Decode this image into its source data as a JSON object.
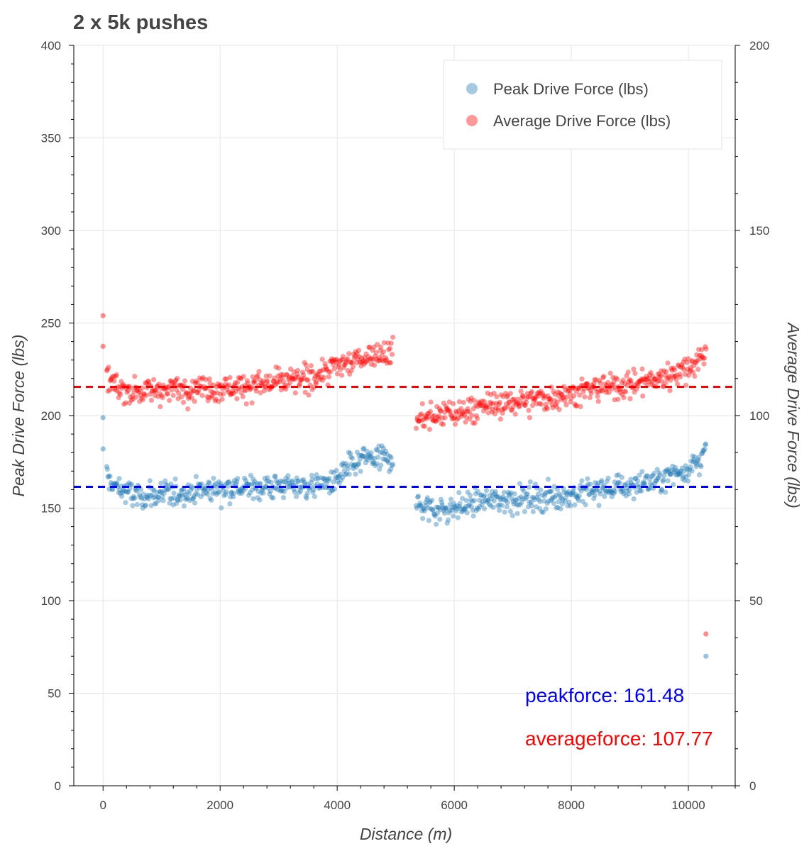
{
  "chart_data": {
    "type": "scatter",
    "title": "2 x 5k pushes",
    "xlabel": "Distance (m)",
    "ylabel": "Peak Drive Force (lbs)",
    "y2label": "Average Drive Force (lbs)",
    "xlim": [
      -500,
      10800
    ],
    "ylim": [
      0,
      400
    ],
    "y2lim": [
      0,
      200
    ],
    "x_ticks": [
      0,
      2000,
      4000,
      6000,
      8000,
      10000
    ],
    "y_ticks": [
      0,
      50,
      100,
      150,
      200,
      250,
      300,
      350,
      400
    ],
    "y2_ticks": [
      0,
      50,
      100,
      150,
      200
    ],
    "grid": true,
    "legend_position": "top-right",
    "series": [
      {
        "name": "Peak Drive Force (lbs)",
        "axis": "left",
        "color": "#1f77b4",
        "points_description": "roughly 800 strokes; segment 1 from 0 to 4950 m trending 160-178, segment 2 from 5350 to 10300 m trending 150-180; outlier 199 at x=0; final point 70 at 10300",
        "anchors": [
          [
            0,
            198.9
          ],
          [
            0,
            182
          ],
          [
            50,
            172
          ],
          [
            100,
            164
          ],
          [
            300,
            160
          ],
          [
            600,
            156
          ],
          [
            1000,
            157
          ],
          [
            1500,
            159
          ],
          [
            2000,
            161
          ],
          [
            2500,
            161
          ],
          [
            3000,
            162
          ],
          [
            3500,
            162
          ],
          [
            3950,
            164
          ],
          [
            4200,
            172
          ],
          [
            4500,
            177
          ],
          [
            4950,
            177
          ],
          [
            5350,
            152
          ],
          [
            5700,
            149
          ],
          [
            6000,
            150
          ],
          [
            6500,
            154
          ],
          [
            7000,
            155
          ],
          [
            7500,
            156
          ],
          [
            8000,
            157
          ],
          [
            8500,
            160
          ],
          [
            9000,
            162
          ],
          [
            9500,
            165
          ],
          [
            10000,
            172
          ],
          [
            10300,
            180
          ],
          [
            10300,
            70
          ]
        ]
      },
      {
        "name": "Average Drive Force (lbs)",
        "axis": "right",
        "color": "#ff0000",
        "points_description": "roughly 800 strokes; segment 1 from 0 to 4950 m trending 107-117, segment 2 from 5350 to 10300 m trending 99-117; outlier 127 at x=0; final point 41 at 10300",
        "anchors": [
          [
            0,
            127
          ],
          [
            0,
            118.7
          ],
          [
            50,
            112
          ],
          [
            100,
            109.5
          ],
          [
            300,
            107
          ],
          [
            600,
            106.5
          ],
          [
            1000,
            107
          ],
          [
            1500,
            107.5
          ],
          [
            2000,
            107.5
          ],
          [
            2500,
            108
          ],
          [
            3000,
            109
          ],
          [
            3500,
            110
          ],
          [
            3950,
            113
          ],
          [
            4300,
            115
          ],
          [
            4600,
            116.5
          ],
          [
            4950,
            117
          ],
          [
            5350,
            99
          ],
          [
            5700,
            100
          ],
          [
            6000,
            100.5
          ],
          [
            6500,
            102.5
          ],
          [
            7000,
            103.5
          ],
          [
            7500,
            104.5
          ],
          [
            8000,
            106
          ],
          [
            8500,
            107.5
          ],
          [
            9000,
            108.5
          ],
          [
            9500,
            110
          ],
          [
            10000,
            113
          ],
          [
            10300,
            117
          ],
          [
            10300,
            41
          ]
        ]
      }
    ],
    "reference_lines": [
      {
        "name": "peakforce",
        "axis": "left",
        "value": 161.48,
        "color": "#0000ff",
        "style": "dashed"
      },
      {
        "name": "averageforce",
        "axis": "right",
        "value": 107.77,
        "color": "#ff0000",
        "style": "dashed"
      }
    ],
    "annotations": [
      {
        "text": "peakforce: 161.48",
        "color": "#0000ff"
      },
      {
        "text": "averageforce: 107.77",
        "color": "#ff0000"
      }
    ]
  }
}
